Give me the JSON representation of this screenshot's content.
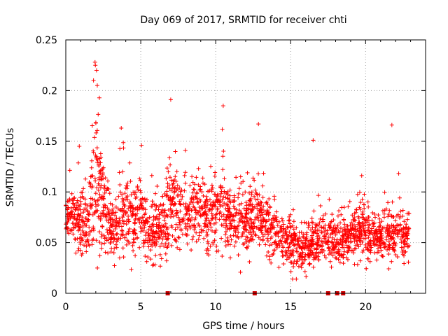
{
  "chart_data": {
    "type": "scatter",
    "title": "Day 069 of 2017, SRMTID for receiver chti",
    "xlabel": "GPS time / hours",
    "ylabel": "SRMTID / TECUs",
    "xlim": [
      0,
      24
    ],
    "ylim": [
      0,
      0.25
    ],
    "x_ticks": [
      0,
      5,
      10,
      15,
      20
    ],
    "x_tick_labels": [
      "0",
      "5",
      "10",
      "15",
      "20"
    ],
    "y_ticks": [
      0,
      0.05,
      0.1,
      0.15,
      0.2,
      0.25
    ],
    "y_tick_labels": [
      "0",
      "0.05",
      "0.1",
      "0.15",
      "0.2",
      "0.25"
    ],
    "grid": true,
    "marker": "plus",
    "color": "#ff0000",
    "gap_markers_x": [
      6.8,
      12.6,
      17.5,
      18.1,
      18.5
    ],
    "envelope": {
      "x": [
        0,
        0.5,
        1.0,
        1.5,
        1.8,
        2.0,
        2.3,
        2.6,
        3.0,
        3.5,
        4.0,
        4.5,
        5.0,
        5.5,
        6.0,
        6.5,
        7.0,
        7.5,
        8.0,
        8.5,
        9.0,
        9.5,
        10.0,
        10.5,
        11.0,
        11.5,
        12.0,
        12.5,
        13.0,
        13.5,
        14.0,
        14.5,
        15.0,
        15.5,
        16.0,
        16.5,
        17.0,
        17.5,
        18.0,
        18.5,
        19.0,
        19.5,
        20.0,
        20.5,
        21.0,
        21.5,
        22.0,
        22.5,
        22.9
      ],
      "median": [
        0.075,
        0.075,
        0.07,
        0.072,
        0.1,
        0.12,
        0.1,
        0.08,
        0.06,
        0.07,
        0.08,
        0.07,
        0.08,
        0.06,
        0.065,
        0.07,
        0.09,
        0.08,
        0.075,
        0.075,
        0.08,
        0.075,
        0.085,
        0.08,
        0.075,
        0.075,
        0.075,
        0.07,
        0.07,
        0.065,
        0.06,
        0.055,
        0.05,
        0.045,
        0.045,
        0.05,
        0.055,
        0.05,
        0.05,
        0.05,
        0.055,
        0.06,
        0.06,
        0.055,
        0.055,
        0.06,
        0.06,
        0.055,
        0.06
      ],
      "spread": [
        0.025,
        0.025,
        0.03,
        0.03,
        0.05,
        0.06,
        0.05,
        0.035,
        0.025,
        0.03,
        0.035,
        0.03,
        0.035,
        0.025,
        0.03,
        0.03,
        0.04,
        0.035,
        0.03,
        0.03,
        0.03,
        0.03,
        0.035,
        0.035,
        0.03,
        0.03,
        0.03,
        0.03,
        0.03,
        0.025,
        0.025,
        0.02,
        0.02,
        0.02,
        0.02,
        0.02,
        0.025,
        0.02,
        0.02,
        0.02,
        0.02,
        0.025,
        0.025,
        0.02,
        0.02,
        0.025,
        0.025,
        0.02,
        0.02
      ],
      "min": 0.014,
      "max": 0.228,
      "n_points": 2400
    },
    "peaks": [
      {
        "x": 1.95,
        "y": 0.228
      },
      {
        "x": 2.05,
        "y": 0.22
      },
      {
        "x": 1.85,
        "y": 0.21
      },
      {
        "x": 2.1,
        "y": 0.205
      },
      {
        "x": 7.0,
        "y": 0.191
      },
      {
        "x": 10.5,
        "y": 0.185
      },
      {
        "x": 21.75,
        "y": 0.166
      },
      {
        "x": 12.85,
        "y": 0.167
      },
      {
        "x": 3.7,
        "y": 0.163
      },
      {
        "x": 16.5,
        "y": 0.151
      },
      {
        "x": 5.05,
        "y": 0.146
      },
      {
        "x": 0.9,
        "y": 0.145
      }
    ]
  }
}
